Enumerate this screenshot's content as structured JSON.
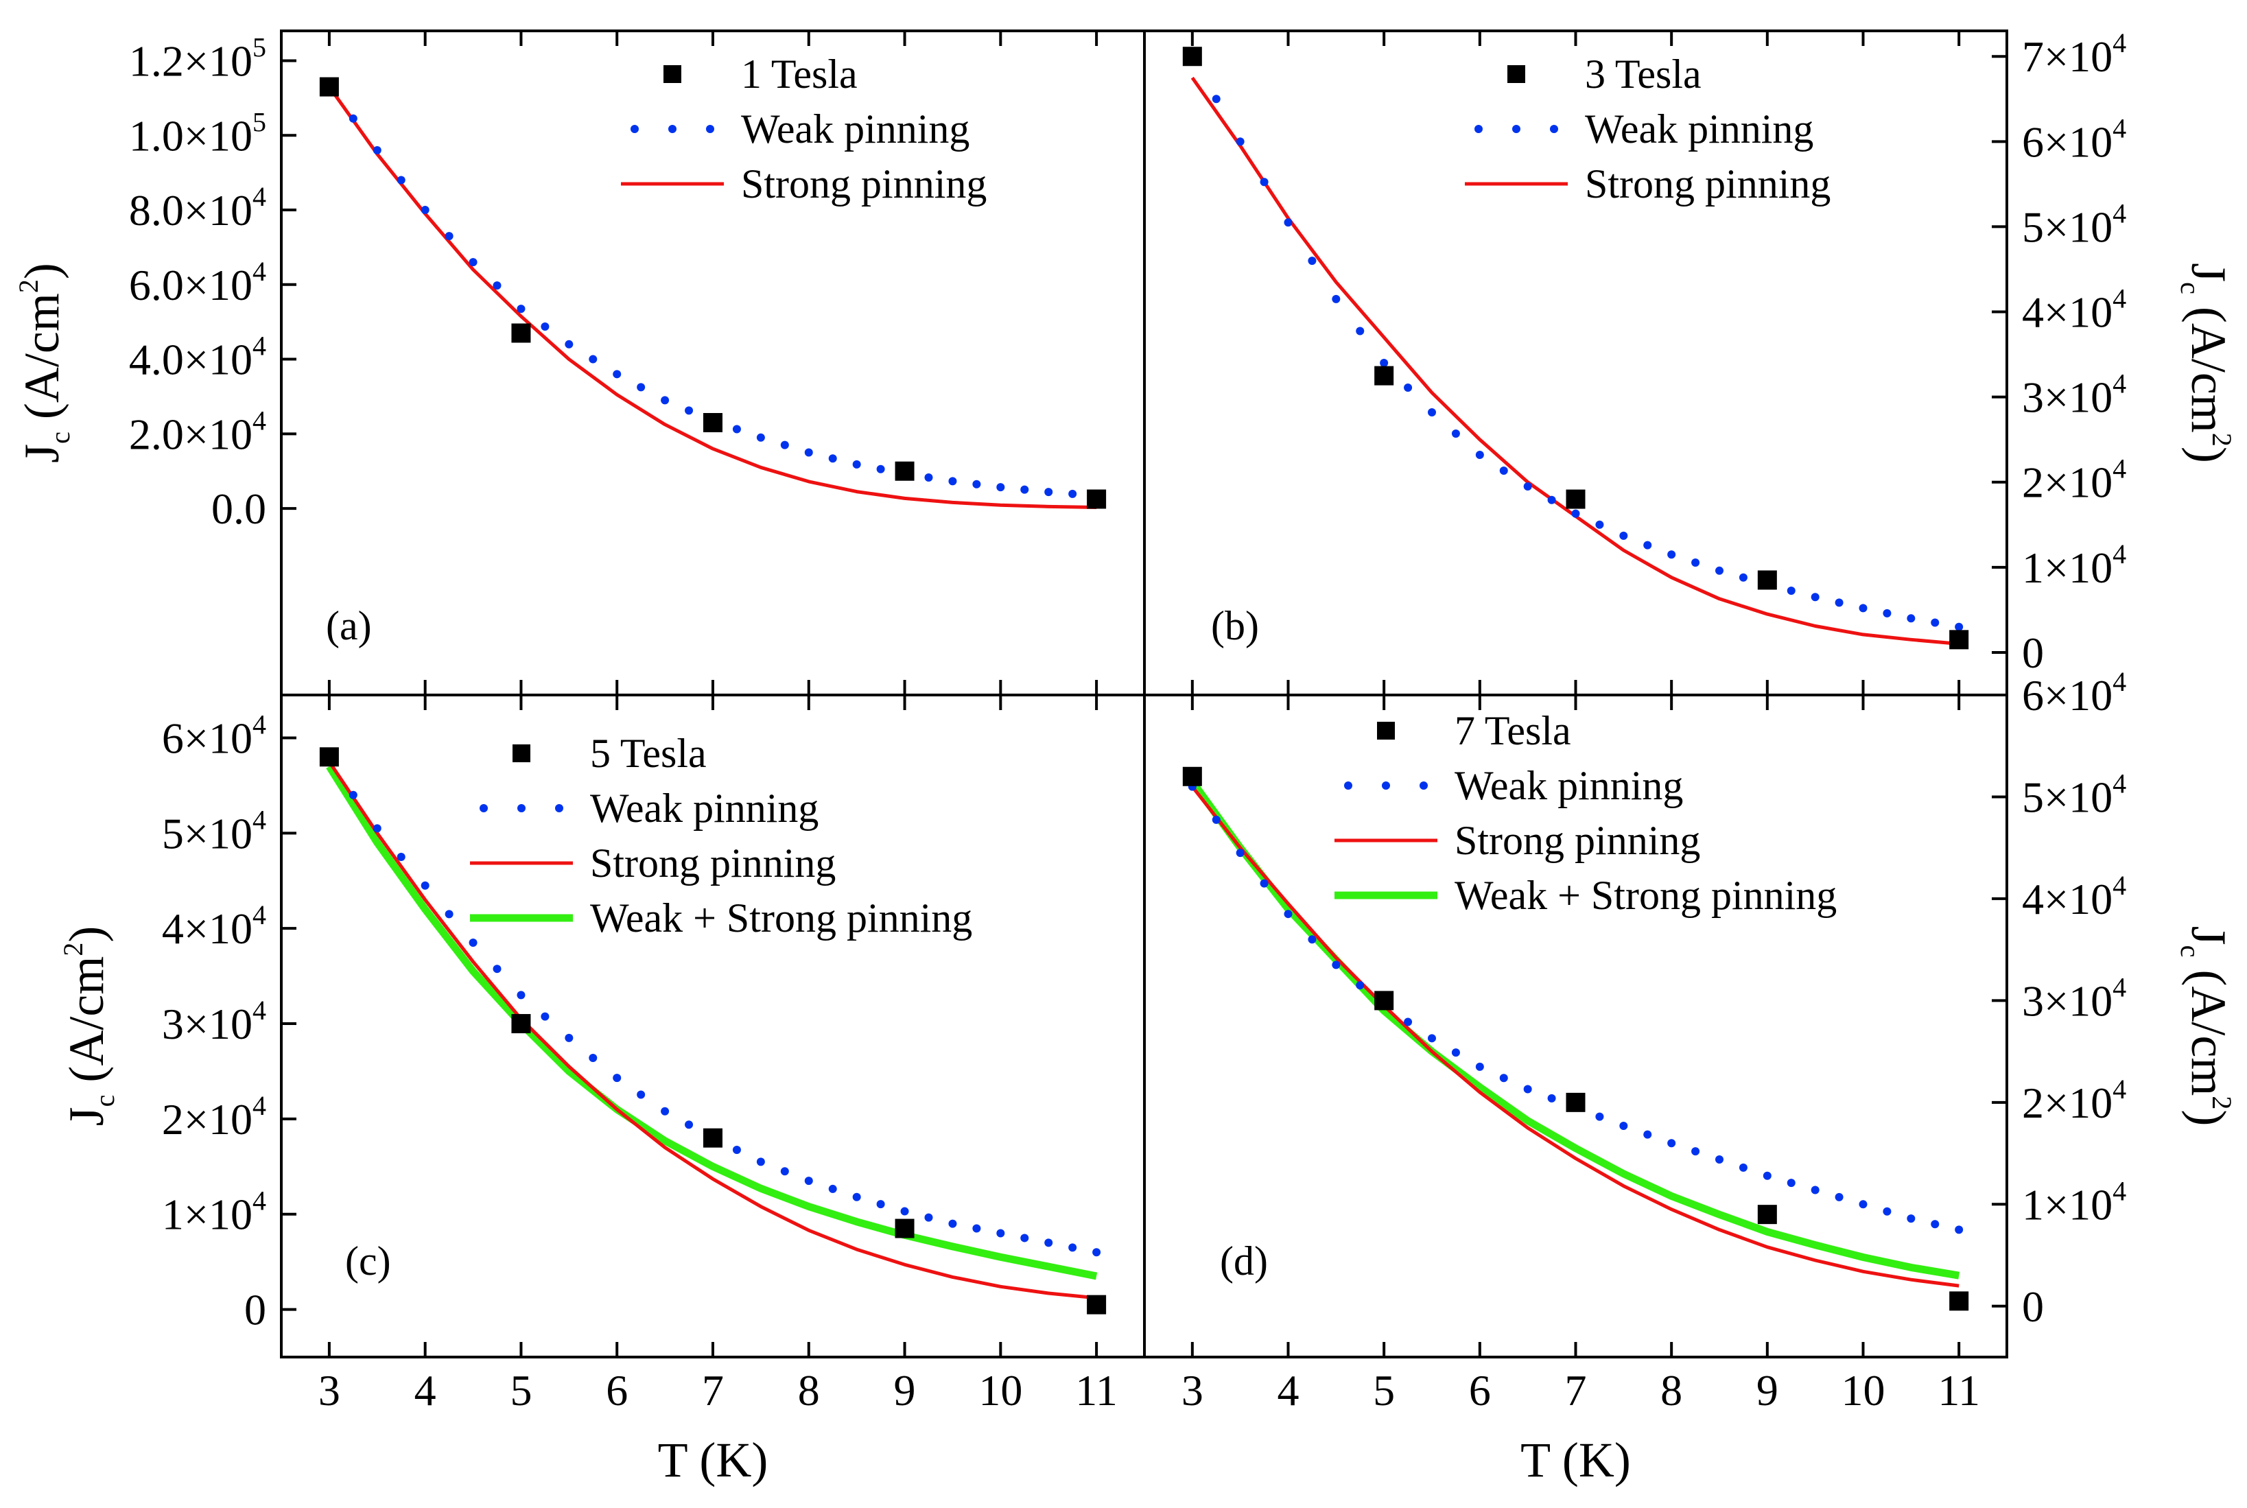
{
  "chart_data": {
    "type": "scatter",
    "layout": "2x2 grid, shared T axis",
    "x_axis": {
      "title": "T (K)",
      "range": [
        2.5,
        11.5
      ],
      "ticks": [
        "3",
        "4",
        "5",
        "6",
        "7",
        "8",
        "9",
        "10",
        "11"
      ],
      "tick_values": [
        3,
        4,
        5,
        6,
        7,
        8,
        9,
        10,
        11
      ]
    },
    "panels": [
      {
        "id": "a",
        "label": "(a)",
        "y_title": {
          "main": "J",
          "sub": "c",
          "rest": " (A/cm",
          "sup": "2",
          "end": ")"
        },
        "y_side": "left",
        "ylim": [
          -50000,
          128000
        ],
        "yticks": [
          {
            "value": 0,
            "mant": "0.0",
            "exp": ""
          },
          {
            "value": 20000,
            "mant": "2.0×10",
            "exp": "4"
          },
          {
            "value": 40000,
            "mant": "4.0×10",
            "exp": "4"
          },
          {
            "value": 60000,
            "mant": "6.0×10",
            "exp": "4"
          },
          {
            "value": 80000,
            "mant": "8.0×10",
            "exp": "4"
          },
          {
            "value": 100000,
            "mant": "1.0×10",
            "exp": "5"
          },
          {
            "value": 120000,
            "mant": "1.2×10",
            "exp": "5"
          }
        ],
        "legend": [
          "1 Tesla",
          "Weak pinning",
          "Strong pinning"
        ],
        "data_points": {
          "x": [
            3,
            5,
            7,
            9,
            11
          ],
          "y": [
            113000,
            47000,
            23000,
            10000,
            2500
          ]
        },
        "weak_pinning": {
          "x": [
            3,
            3.5,
            4,
            4.5,
            5,
            5.5,
            6,
            6.5,
            7,
            7.5,
            8,
            8.5,
            9,
            9.5,
            10,
            10.5,
            11
          ],
          "y": [
            113000,
            96000,
            80000,
            66000,
            53500,
            44000,
            36000,
            29000,
            23500,
            19000,
            15000,
            11800,
            9300,
            7300,
            5700,
            4400,
            3400
          ]
        },
        "strong_pinning": {
          "x": [
            3,
            3.5,
            4,
            4.5,
            5,
            5.5,
            6,
            6.5,
            7,
            7.5,
            8,
            8.5,
            9,
            9.5,
            10,
            10.5,
            11
          ],
          "y": [
            113000,
            95000,
            79000,
            64000,
            51500,
            40000,
            30500,
            22500,
            16000,
            11000,
            7200,
            4500,
            2700,
            1600,
            900,
            500,
            300
          ]
        }
      },
      {
        "id": "b",
        "label": "(b)",
        "y_title": {
          "main": "J",
          "sub": "c",
          "rest": " (A/cm",
          "sup": "2",
          "end": ")"
        },
        "y_side": "right",
        "ylim": [
          -5000,
          73000
        ],
        "yticks": [
          {
            "value": 0,
            "mant": "0",
            "exp": ""
          },
          {
            "value": 10000,
            "mant": "1×10",
            "exp": "4"
          },
          {
            "value": 20000,
            "mant": "2×10",
            "exp": "4"
          },
          {
            "value": 30000,
            "mant": "3×10",
            "exp": "4"
          },
          {
            "value": 40000,
            "mant": "4×10",
            "exp": "4"
          },
          {
            "value": 50000,
            "mant": "5×10",
            "exp": "4"
          },
          {
            "value": 60000,
            "mant": "6×10",
            "exp": "4"
          },
          {
            "value": 70000,
            "mant": "7×10",
            "exp": "4"
          }
        ],
        "legend": [
          "3 Tesla",
          "Weak pinning",
          "Strong pinning"
        ],
        "data_points": {
          "x": [
            3,
            5,
            7,
            9,
            11
          ],
          "y": [
            70000,
            32500,
            18000,
            8500,
            1500
          ]
        },
        "weak_pinning": {
          "x": [
            3,
            3.5,
            4,
            4.5,
            5,
            5.5,
            6,
            6.5,
            7,
            7.5,
            8,
            8.5,
            9,
            9.5,
            10,
            10.5,
            11
          ],
          "y": [
            70000,
            60000,
            50500,
            41500,
            34000,
            28200,
            23200,
            19500,
            16300,
            13700,
            11500,
            9600,
            8000,
            6500,
            5200,
            4000,
            3000
          ]
        },
        "strong_pinning": {
          "x": [
            3,
            3.5,
            4,
            4.5,
            5,
            5.5,
            6,
            6.5,
            7,
            7.5,
            8,
            8.5,
            9,
            9.5,
            10,
            10.5,
            11
          ],
          "y": [
            67500,
            59500,
            51000,
            43500,
            37000,
            30500,
            25000,
            20000,
            16000,
            12000,
            8800,
            6300,
            4500,
            3100,
            2100,
            1500,
            1000
          ]
        }
      },
      {
        "id": "c",
        "label": "(c)",
        "y_title": {
          "main": "J",
          "sub": "c",
          "rest": " (A/cm",
          "sup": "2",
          "end": ")"
        },
        "y_side": "left",
        "ylim": [
          -5000,
          64500
        ],
        "yticks": [
          {
            "value": 0,
            "mant": "0",
            "exp": ""
          },
          {
            "value": 10000,
            "mant": "1×10",
            "exp": "4"
          },
          {
            "value": 20000,
            "mant": "2×10",
            "exp": "4"
          },
          {
            "value": 30000,
            "mant": "3×10",
            "exp": "4"
          },
          {
            "value": 40000,
            "mant": "4×10",
            "exp": "4"
          },
          {
            "value": 50000,
            "mant": "5×10",
            "exp": "4"
          },
          {
            "value": 60000,
            "mant": "6×10",
            "exp": "4"
          }
        ],
        "legend": [
          "5 Tesla",
          "Weak pinning",
          "Strong pinning",
          "Weak + Strong pinning"
        ],
        "data_points": {
          "x": [
            3,
            5,
            7,
            9,
            11
          ],
          "y": [
            58000,
            30000,
            18000,
            8500,
            500
          ]
        },
        "weak_pinning": {
          "x": [
            3,
            3.5,
            4,
            4.5,
            5,
            5.5,
            6,
            6.5,
            7,
            7.5,
            8,
            8.5,
            9,
            9.5,
            10,
            10.5,
            11
          ],
          "y": [
            57500,
            50500,
            44500,
            38500,
            33000,
            28500,
            24300,
            20800,
            18000,
            15500,
            13500,
            11800,
            10300,
            9000,
            8000,
            7000,
            6000
          ]
        },
        "strong_pinning": {
          "x": [
            3,
            3.5,
            4,
            4.5,
            5,
            5.5,
            6,
            6.5,
            7,
            7.5,
            8,
            8.5,
            9,
            9.5,
            10,
            10.5,
            11
          ],
          "y": [
            57500,
            50000,
            43000,
            36500,
            30500,
            25500,
            21000,
            17000,
            13700,
            10800,
            8300,
            6300,
            4700,
            3400,
            2400,
            1700,
            1200
          ]
        },
        "weak_strong_pinning": {
          "x": [
            3,
            3.5,
            4,
            4.5,
            5,
            5.5,
            6,
            6.5,
            7,
            7.5,
            8,
            8.5,
            9,
            9.5,
            10,
            10.5,
            11
          ],
          "y": [
            57000,
            49000,
            42000,
            35500,
            30000,
            25000,
            21000,
            17700,
            15000,
            12700,
            10800,
            9200,
            7800,
            6600,
            5500,
            4500,
            3500
          ]
        }
      },
      {
        "id": "d",
        "label": "(d)",
        "y_title": {
          "main": "J",
          "sub": "c",
          "rest": " (A/cm",
          "sup": "2",
          "end": ")"
        },
        "y_side": "right",
        "ylim": [
          -5000,
          60000
        ],
        "yticks": [
          {
            "value": 0,
            "mant": "0",
            "exp": ""
          },
          {
            "value": 10000,
            "mant": "1×10",
            "exp": "4"
          },
          {
            "value": 20000,
            "mant": "2×10",
            "exp": "4"
          },
          {
            "value": 30000,
            "mant": "3×10",
            "exp": "4"
          },
          {
            "value": 40000,
            "mant": "4×10",
            "exp": "4"
          },
          {
            "value": 50000,
            "mant": "5×10",
            "exp": "4"
          },
          {
            "value": 60000,
            "mant": "6×10",
            "exp": "4"
          }
        ],
        "legend": [
          "7 Tesla",
          "Weak pinning",
          "Strong pinning",
          "Weak + Strong pinning"
        ],
        "data_points": {
          "x": [
            3,
            5,
            7,
            9,
            11
          ],
          "y": [
            52000,
            30000,
            20000,
            9000,
            500
          ]
        },
        "weak_pinning": {
          "x": [
            3,
            3.5,
            4,
            4.5,
            5,
            5.5,
            6,
            6.5,
            7,
            7.5,
            8,
            8.5,
            9,
            9.5,
            10,
            10.5,
            11
          ],
          "y": [
            51000,
            44500,
            38500,
            33500,
            29500,
            26300,
            23500,
            21300,
            19500,
            17700,
            16000,
            14400,
            12800,
            11400,
            10000,
            8600,
            7500
          ]
        },
        "strong_pinning": {
          "x": [
            3,
            3.5,
            4,
            4.5,
            5,
            5.5,
            6,
            6.5,
            7,
            7.5,
            8,
            8.5,
            9,
            9.5,
            10,
            10.5,
            11
          ],
          "y": [
            51000,
            45000,
            39500,
            34200,
            29500,
            25000,
            21000,
            17500,
            14500,
            11800,
            9500,
            7500,
            5800,
            4500,
            3400,
            2600,
            2000
          ]
        },
        "weak_strong_pinning": {
          "x": [
            3,
            3.5,
            4,
            4.5,
            5,
            5.5,
            6,
            6.5,
            7,
            7.5,
            8,
            8.5,
            9,
            9.5,
            10,
            10.5,
            11
          ],
          "y": [
            51500,
            45000,
            39000,
            34000,
            29000,
            25000,
            21500,
            18200,
            15500,
            13000,
            10800,
            9000,
            7300,
            6000,
            4800,
            3800,
            3000
          ]
        }
      }
    ],
    "colors": {
      "data": "#000000",
      "weak": "#0033ee",
      "strong": "#ee1111",
      "combined": "#33ee11"
    }
  }
}
